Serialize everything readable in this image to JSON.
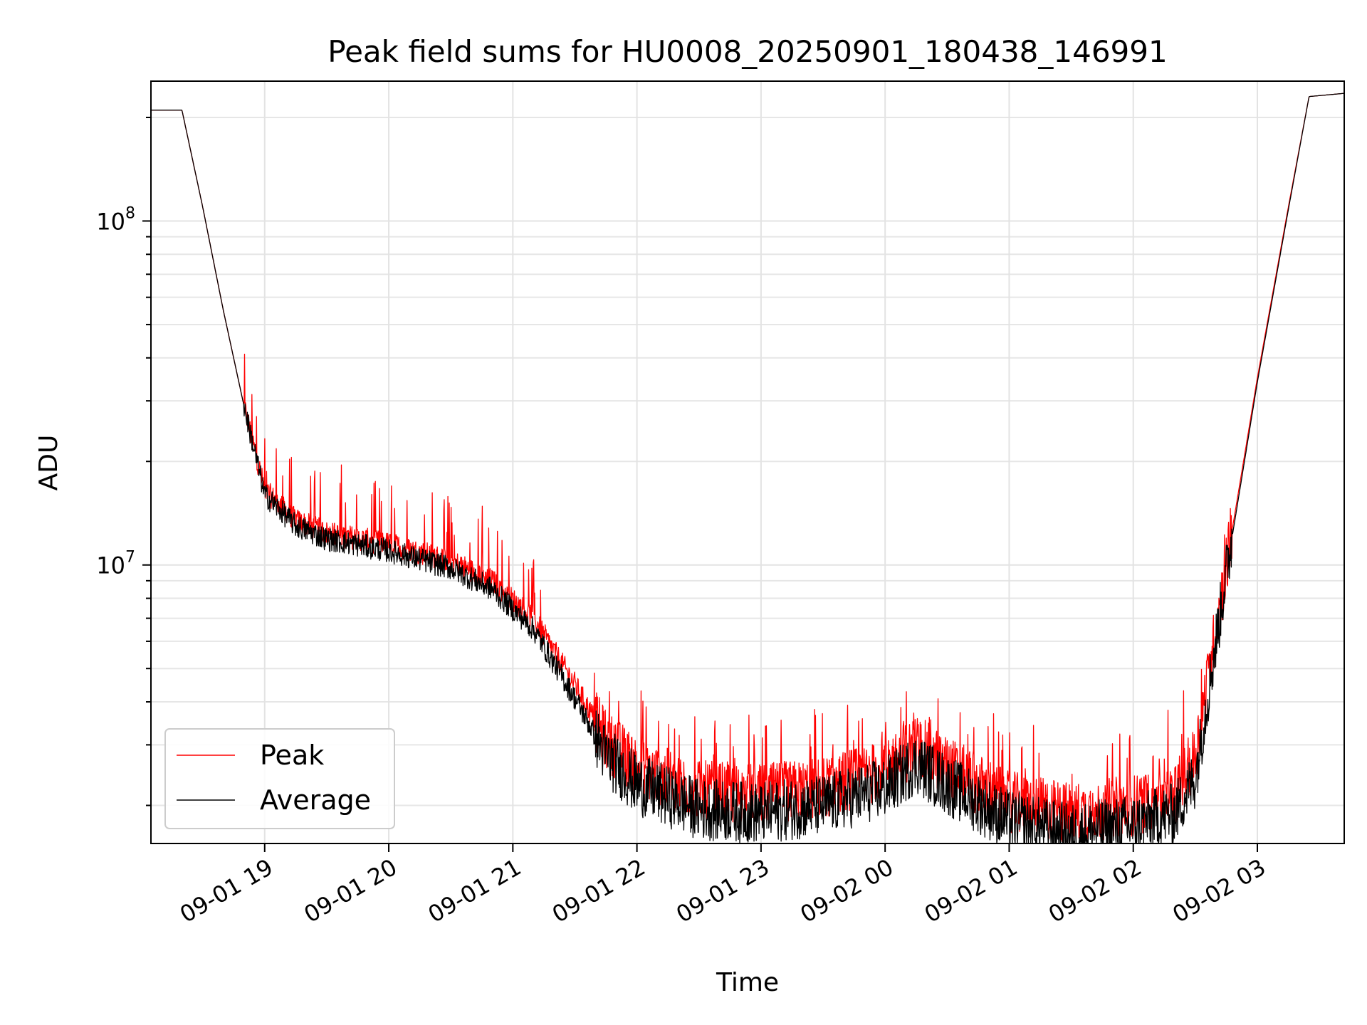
{
  "chart_data": {
    "type": "line",
    "title": "Peak field sums for HU0008_20250901_180438_146991",
    "xlabel": "Time",
    "ylabel": "ADU",
    "yscale": "log",
    "ylim": [
      1550000,
      255000000
    ],
    "xlim": [
      "2025-09-01 18:05",
      "2025-09-02 03:42"
    ],
    "grid": true,
    "legend_position": "lower-left",
    "x_ticks": [
      "09-01 19",
      "09-01 20",
      "09-01 21",
      "09-01 22",
      "09-01 23",
      "09-02 00",
      "09-02 01",
      "09-02 02",
      "09-02 03"
    ],
    "y_ticks": [
      {
        "base": "10",
        "exp": "7",
        "value": 10000000
      },
      {
        "base": "10",
        "exp": "8",
        "value": 100000000
      }
    ],
    "x": [
      "2025-09-01 18:05",
      "2025-09-01 18:20",
      "2025-09-01 18:30",
      "2025-09-01 18:40",
      "2025-09-01 18:50",
      "2025-09-01 19:00",
      "2025-09-01 19:15",
      "2025-09-01 19:30",
      "2025-09-01 20:00",
      "2025-09-01 20:30",
      "2025-09-01 20:50",
      "2025-09-01 21:10",
      "2025-09-01 21:30",
      "2025-09-01 21:45",
      "2025-09-01 22:00",
      "2025-09-01 22:30",
      "2025-09-01 23:00",
      "2025-09-01 23:30",
      "2025-09-02 00:00",
      "2025-09-02 00:15",
      "2025-09-02 00:30",
      "2025-09-02 01:00",
      "2025-09-02 01:30",
      "2025-09-02 02:00",
      "2025-09-02 02:20",
      "2025-09-02 02:30",
      "2025-09-02 02:45",
      "2025-09-02 03:00",
      "2025-09-02 03:15",
      "2025-09-02 03:25",
      "2025-09-02 03:42"
    ],
    "series": [
      {
        "name": "Peak",
        "color": "#ff0000",
        "values": [
          210000000,
          210000000,
          110000000,
          55000000,
          29000000,
          16500000,
          13500000,
          12400000,
          11500000,
          10300000,
          9000000,
          7000000,
          4500000,
          3100000,
          2600000,
          2200000,
          2150000,
          2250000,
          2550000,
          3000000,
          2600000,
          2050000,
          1900000,
          2000000,
          2150000,
          2800000,
          10000000,
          35000000,
          110000000,
          230000000,
          235000000
        ]
      },
      {
        "name": "Average",
        "color": "#000000",
        "values": [
          210000000,
          210000000,
          110000000,
          55000000,
          29000000,
          16000000,
          13000000,
          11900000,
          11000000,
          9800000,
          8500000,
          6500000,
          4100000,
          2800000,
          2300000,
          1950000,
          1900000,
          2000000,
          2250000,
          2650000,
          2300000,
          1800000,
          1650000,
          1750000,
          1900000,
          2400000,
          9500000,
          34000000,
          108000000,
          230000000,
          235000000
        ]
      }
    ]
  }
}
